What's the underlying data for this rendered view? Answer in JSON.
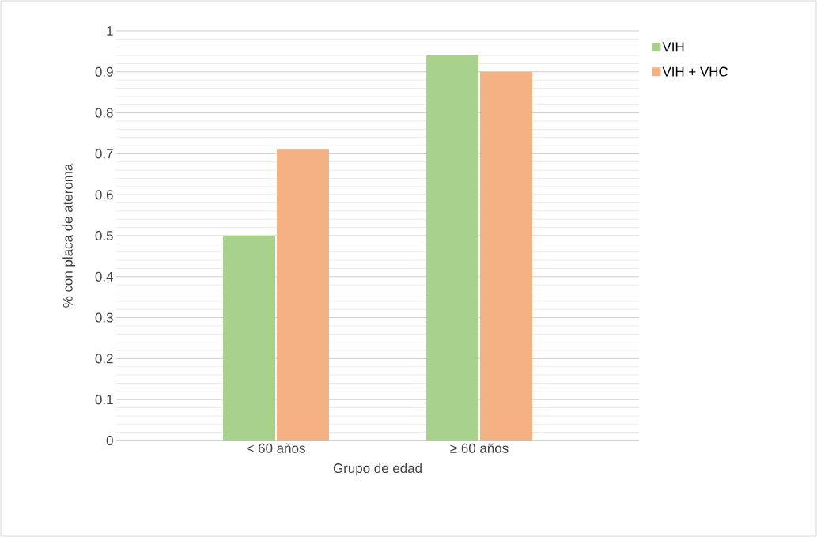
{
  "chart_data": {
    "type": "bar",
    "xlabel": "Grupo de edad",
    "ylabel": "%  con placa de ateroma",
    "categories": [
      "< 60 años",
      "≥ 60 años"
    ],
    "series": [
      {
        "name": "VIH",
        "color": "#a9d18e",
        "values": [
          0.5,
          0.94
        ]
      },
      {
        "name": "VIH + VHC",
        "color": "#f4b183",
        "values": [
          0.71,
          0.9
        ]
      }
    ],
    "ylim": [
      0,
      1
    ],
    "yticks": [
      0,
      0.1,
      0.2,
      0.3,
      0.4,
      0.5,
      0.6,
      0.7,
      0.8,
      0.9,
      1
    ],
    "grid": true,
    "legend": "right"
  }
}
